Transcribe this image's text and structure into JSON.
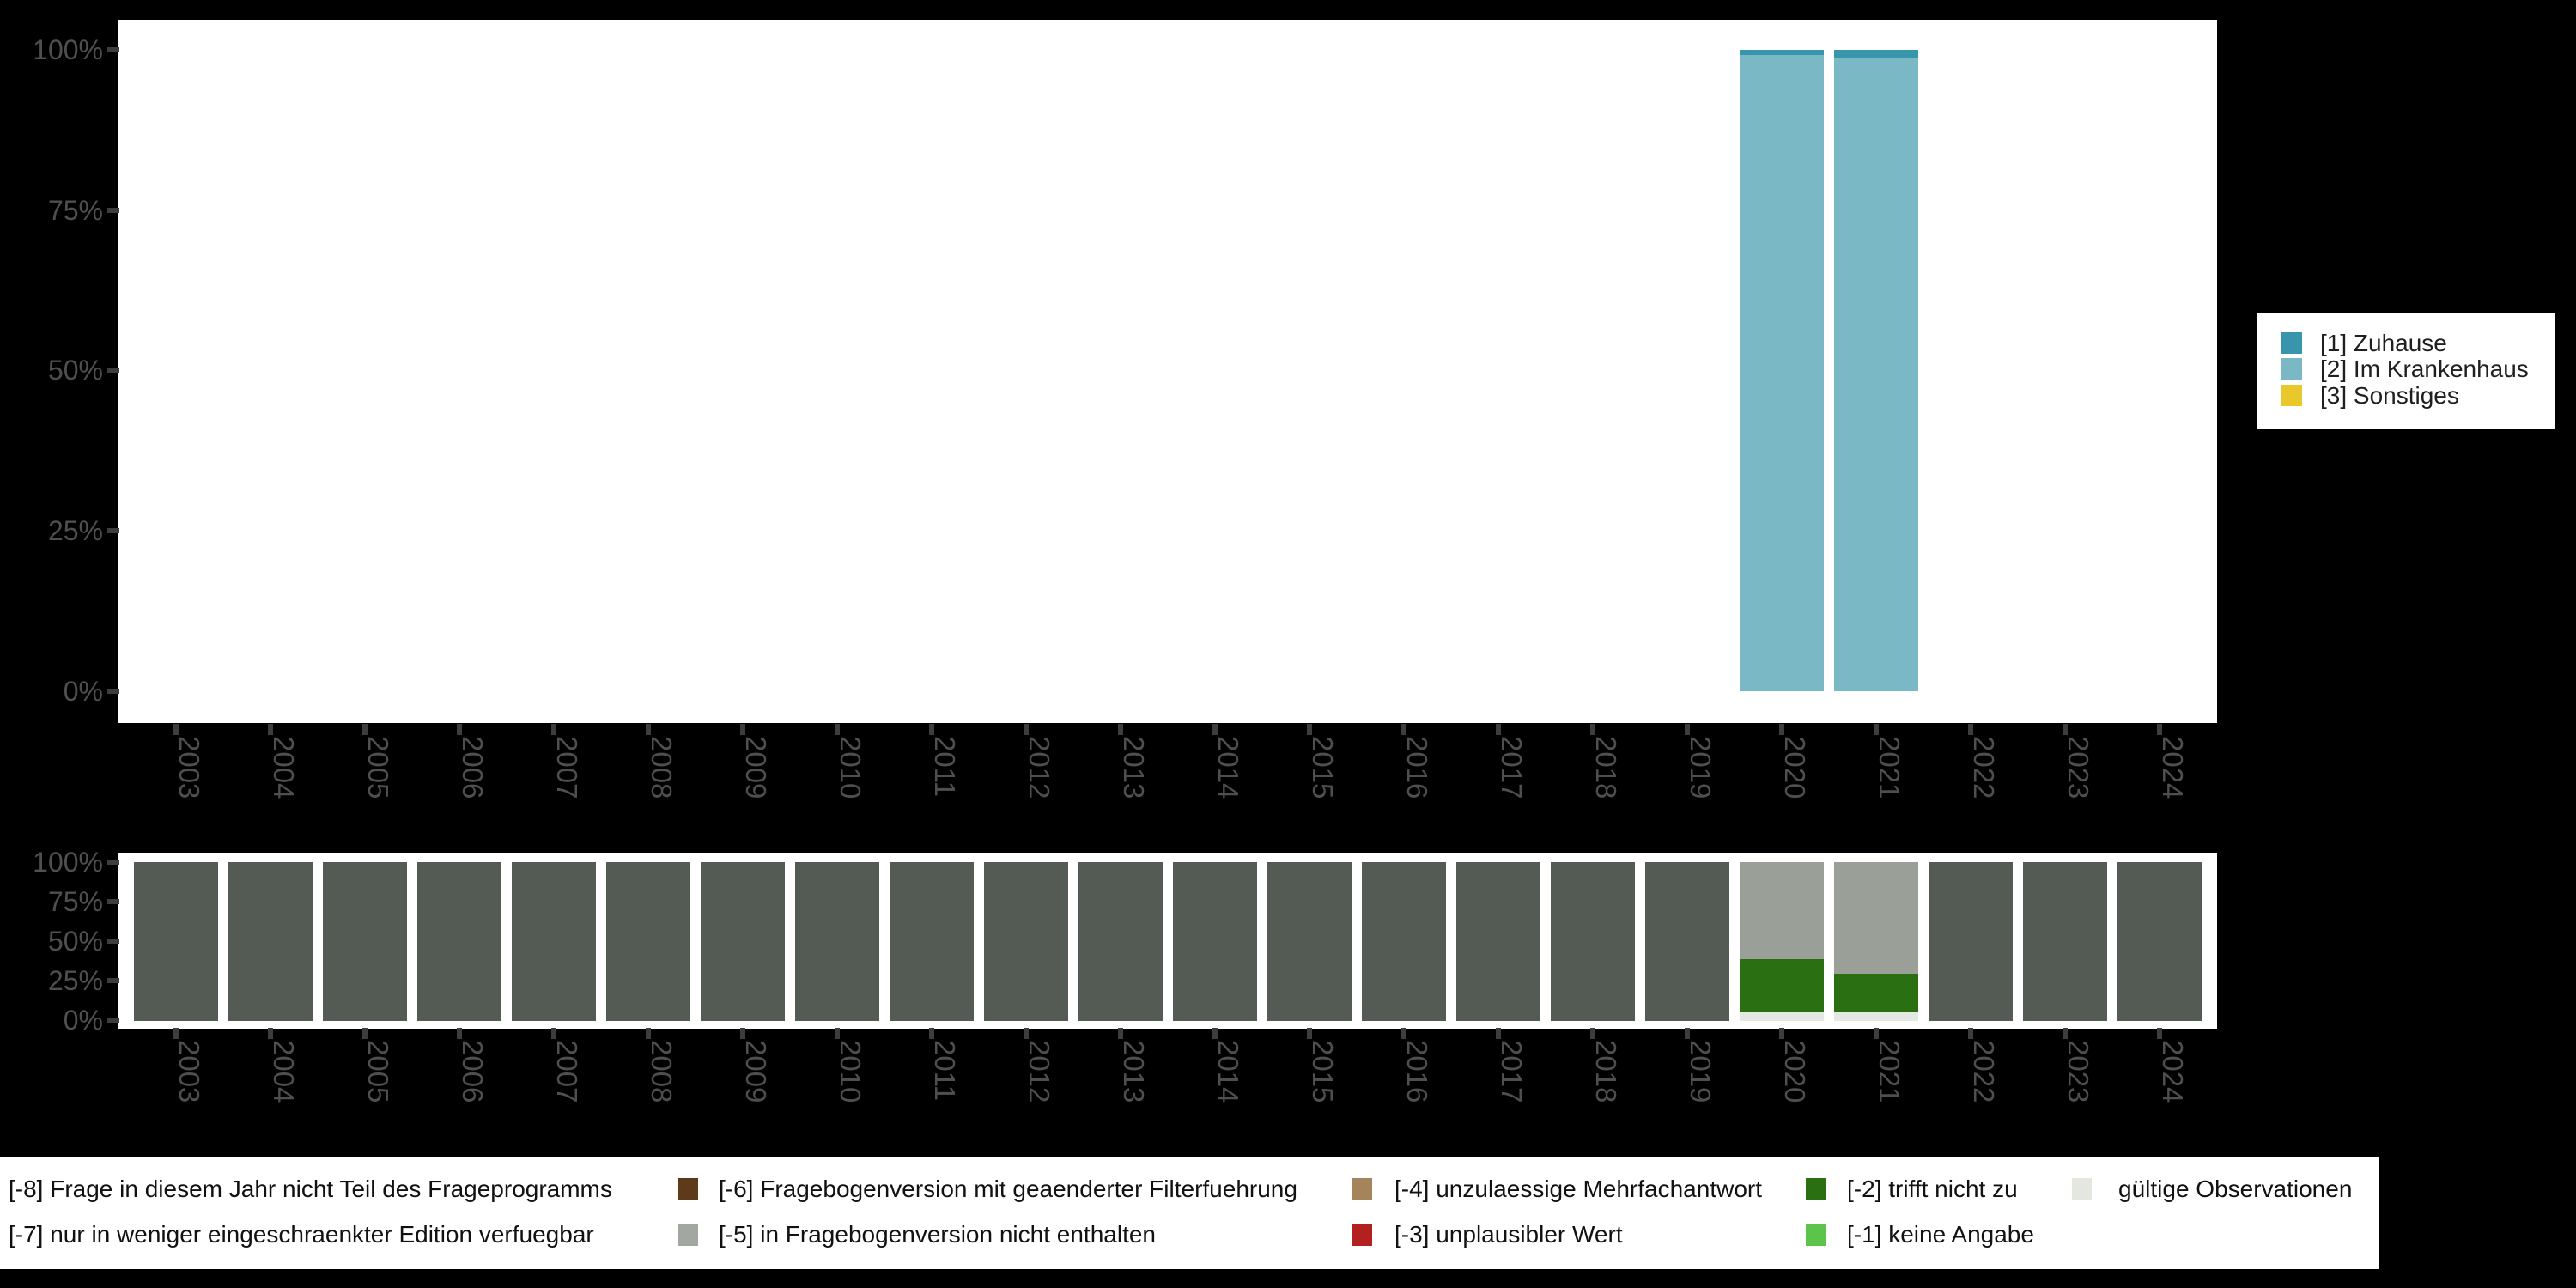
{
  "page": {
    "background": "#000000",
    "plot_background": "#ffffff",
    "axis_text_color": "#4f4f4f",
    "tick_color": "#3d3d3d"
  },
  "chart_data": [
    {
      "id": "value-distribution",
      "type": "bar",
      "stacked": true,
      "title": "",
      "xlabel": "",
      "ylabel": "",
      "ylim": [
        0,
        100
      ],
      "grid": false,
      "legend_position": "right",
      "y_tick_labels": [
        "100%",
        "75%",
        "50%",
        "25%",
        "0%"
      ],
      "categories": [
        "2003",
        "2004",
        "2005",
        "2006",
        "2007",
        "2008",
        "2009",
        "2010",
        "2011",
        "2012",
        "2013",
        "2014",
        "2015",
        "2016",
        "2017",
        "2018",
        "2019",
        "2020",
        "2021",
        "2022",
        "2023",
        "2024"
      ],
      "series": [
        {
          "name": "[1] Zuhause",
          "color": "#3995ac",
          "values": [
            0,
            0,
            0,
            0,
            0,
            0,
            0,
            0,
            0,
            0,
            0,
            0,
            0,
            0,
            0,
            0,
            0,
            0.7,
            1.3,
            0,
            0,
            0
          ]
        },
        {
          "name": "[2] Im Krankenhaus",
          "color": "#7ab8c5",
          "values": [
            0,
            0,
            0,
            0,
            0,
            0,
            0,
            0,
            0,
            0,
            0,
            0,
            0,
            0,
            0,
            0,
            0,
            99.3,
            98.7,
            0,
            0,
            0
          ]
        },
        {
          "name": "[3] Sonstiges",
          "color": "#e8c82a",
          "values": [
            0,
            0,
            0,
            0,
            0,
            0,
            0,
            0,
            0,
            0,
            0,
            0,
            0,
            0,
            0,
            0,
            0,
            0,
            0,
            0,
            0,
            0
          ]
        }
      ]
    },
    {
      "id": "missing-distribution",
      "type": "bar",
      "stacked": true,
      "title": "",
      "xlabel": "",
      "ylabel": "",
      "ylim": [
        0,
        100
      ],
      "grid": false,
      "y_tick_labels": [
        "100%",
        "75%",
        "50%",
        "25%",
        "0%"
      ],
      "categories": [
        "2003",
        "2004",
        "2005",
        "2006",
        "2007",
        "2008",
        "2009",
        "2010",
        "2011",
        "2012",
        "2013",
        "2014",
        "2015",
        "2016",
        "2017",
        "2018",
        "2019",
        "2020",
        "2021",
        "2022",
        "2023",
        "2024"
      ],
      "series": [
        {
          "name": "[-8] Frage in diesem Jahr nicht Teil des Frageprogramms",
          "color": "#545a54",
          "values": [
            100,
            100,
            100,
            100,
            100,
            100,
            100,
            100,
            100,
            100,
            100,
            100,
            100,
            100,
            100,
            100,
            100,
            0,
            0,
            100,
            100,
            100
          ]
        },
        {
          "name": "[-5] in Fragebogenversion nicht enthalten",
          "color": "#9aa098",
          "values": [
            0,
            0,
            0,
            0,
            0,
            0,
            0,
            0,
            0,
            0,
            0,
            0,
            0,
            0,
            0,
            0,
            0,
            61,
            70,
            0,
            0,
            0
          ]
        },
        {
          "name": "[-2] trifft nicht zu",
          "color": "#2a7012",
          "values": [
            0,
            0,
            0,
            0,
            0,
            0,
            0,
            0,
            0,
            0,
            0,
            0,
            0,
            0,
            0,
            0,
            0,
            33,
            24,
            0,
            0,
            0
          ]
        },
        {
          "name": "gültige Observationen",
          "color": "#e4e8e2",
          "values": [
            0,
            0,
            0,
            0,
            0,
            0,
            0,
            0,
            0,
            0,
            0,
            0,
            0,
            0,
            0,
            0,
            0,
            6,
            6,
            0,
            0,
            0
          ]
        }
      ]
    }
  ],
  "legend_right": {
    "items": [
      {
        "label": "[1] Zuhause",
        "color": "#3995ac"
      },
      {
        "label": "[2] Im Krankenhaus",
        "color": "#7ab8c5"
      },
      {
        "label": "[3] Sonstiges",
        "color": "#e8c82a"
      }
    ]
  },
  "legend_bottom": {
    "rows": [
      [
        {
          "label": "[-8] Frage in diesem Jahr nicht Teil des Frageprogramms",
          "swatch": null
        },
        {
          "label": "[-6] Fragebogenversion mit geaenderter Filterfuehrung",
          "swatch": "#5d3a1a"
        },
        {
          "label": "[-4] unzulaessige Mehrfachantwort",
          "swatch": "#a5845c"
        },
        {
          "label": "[-2] trifft nicht zu",
          "swatch": "#2a7012"
        },
        {
          "label": "gültige Observationen",
          "swatch": "#e3e7e0"
        }
      ],
      [
        {
          "label": "[-7] nur in weniger eingeschraenkter Edition verfuegbar",
          "swatch": null
        },
        {
          "label": "[-5] in Fragebogenversion nicht enthalten",
          "swatch": "#a2a7a1"
        },
        {
          "label": "[-3] unplausibler Wert",
          "swatch": "#b22020"
        },
        {
          "label": "[-1] keine Angabe",
          "swatch": "#5cc44a"
        }
      ]
    ]
  }
}
